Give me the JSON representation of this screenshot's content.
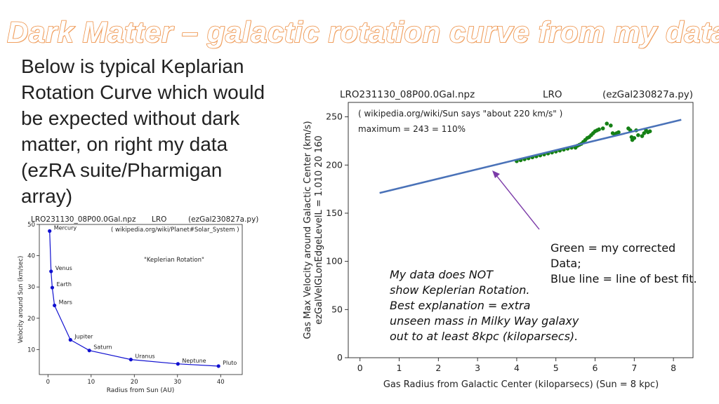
{
  "slide": {
    "title": "Dark Matter – galactic rotation curve from my data",
    "intro_lines": [
      "Below is typical Keplarian",
      "Rotation Curve which would",
      "be expected without dark",
      "matter, on right my data",
      "(ezRA suite/Pharmigan",
      "array)"
    ]
  },
  "chart_data": [
    {
      "id": "kepler",
      "type": "line",
      "header": {
        "left": "LRO231130_08P00.0Gal.npz",
        "center": "LRO",
        "right": "(ezGal230827a.py)"
      },
      "title": "",
      "annotations": [
        "( wikipedia.org/wiki/Planet#Solar_System )",
        "\"Keplerian Rotation\""
      ],
      "xlabel": "Radius from Sun (AU)",
      "ylabel": "Velocity around Sun (km/sec)",
      "xlim": [
        -2,
        45
      ],
      "ylim": [
        2,
        50
      ],
      "xticks": [
        0,
        10,
        20,
        30,
        40
      ],
      "yticks": [
        10,
        20,
        30,
        40,
        50
      ],
      "color": "#1010d0",
      "points": [
        {
          "name": "Mercury",
          "x": 0.39,
          "y": 47.9
        },
        {
          "name": "Venus",
          "x": 0.72,
          "y": 35.0
        },
        {
          "name": "Earth",
          "x": 1.0,
          "y": 29.8
        },
        {
          "name": "Mars",
          "x": 1.52,
          "y": 24.1
        },
        {
          "name": "Jupiter",
          "x": 5.2,
          "y": 13.1
        },
        {
          "name": "Saturn",
          "x": 9.58,
          "y": 9.7
        },
        {
          "name": "Uranus",
          "x": 19.2,
          "y": 6.8
        },
        {
          "name": "Neptune",
          "x": 30.1,
          "y": 5.4
        },
        {
          "name": "Pluto",
          "x": 39.5,
          "y": 4.7
        }
      ]
    },
    {
      "id": "galaxy",
      "type": "scatter",
      "header": {
        "left": "LRO231130_08P00.0Gal.npz",
        "center": "LRO",
        "right": "(ezGal230827a.py)"
      },
      "title": "",
      "annotations": [
        "( wikipedia.org/wiki/Sun says \"about 220 km/s\" )",
        "maximum = 243 = 110%"
      ],
      "xlabel": "Gas Radius from Galactic Center (kiloparsecs)  (Sun = 8 kpc)",
      "ylabel": "Gas Max Velocity around Galactic Center (km/s)",
      "ylabel2": "ezGalVelGLonEdgeLevelL = 1.010  20  160",
      "xlim": [
        -0.3,
        8.5
      ],
      "ylim": [
        0,
        265
      ],
      "xticks": [
        0,
        1,
        2,
        3,
        4,
        5,
        6,
        7,
        8
      ],
      "yticks": [
        0,
        50,
        100,
        150,
        200,
        250
      ],
      "series": [
        {
          "name": "Green = my corrected Data",
          "color": "#158015",
          "points": [
            [
              4.0,
              204
            ],
            [
              4.1,
              205
            ],
            [
              4.2,
              206
            ],
            [
              4.3,
              207
            ],
            [
              4.4,
              208
            ],
            [
              4.5,
              209
            ],
            [
              4.6,
              210
            ],
            [
              4.7,
              211
            ],
            [
              4.8,
              212
            ],
            [
              4.9,
              213
            ],
            [
              5.0,
              214
            ],
            [
              5.1,
              215
            ],
            [
              5.2,
              216
            ],
            [
              5.3,
              217
            ],
            [
              5.4,
              218
            ],
            [
              5.5,
              218
            ],
            [
              5.55,
              220
            ],
            [
              5.6,
              221
            ],
            [
              5.65,
              222
            ],
            [
              5.7,
              224
            ],
            [
              5.75,
              226
            ],
            [
              5.8,
              228
            ],
            [
              5.85,
              229
            ],
            [
              5.9,
              231
            ],
            [
              5.95,
              233
            ],
            [
              6.0,
              235
            ],
            [
              6.05,
              236
            ],
            [
              6.1,
              237
            ],
            [
              6.2,
              238
            ],
            [
              6.3,
              243
            ],
            [
              6.4,
              241
            ],
            [
              6.45,
              233
            ],
            [
              6.5,
              232
            ],
            [
              6.55,
              233
            ],
            [
              6.6,
              234
            ],
            [
              6.85,
              238
            ],
            [
              6.9,
              236
            ],
            [
              6.93,
              229
            ],
            [
              6.95,
              226
            ],
            [
              7.0,
              228
            ],
            [
              7.05,
              236
            ],
            [
              7.1,
              231
            ],
            [
              7.2,
              230
            ],
            [
              7.25,
              233
            ],
            [
              7.3,
              236
            ],
            [
              7.35,
              234
            ],
            [
              7.4,
              235
            ]
          ]
        },
        {
          "name": "Blue line = line of best fit.",
          "color": "#4a72b8",
          "line": [
            [
              0.5,
              171
            ],
            [
              8.2,
              247
            ]
          ]
        }
      ],
      "legend_text": [
        "Green = my corrected",
        "Data;",
        "Blue line = line of best fit."
      ],
      "note_lines": [
        "My data does NOT",
        "show Keplerian Rotation.",
        "Best explanation = extra",
        "unseen mass in Milky Way galaxy",
        "out to at least 8kpc (kiloparsecs)."
      ],
      "arrow_color": "#7b3aa8"
    }
  ]
}
